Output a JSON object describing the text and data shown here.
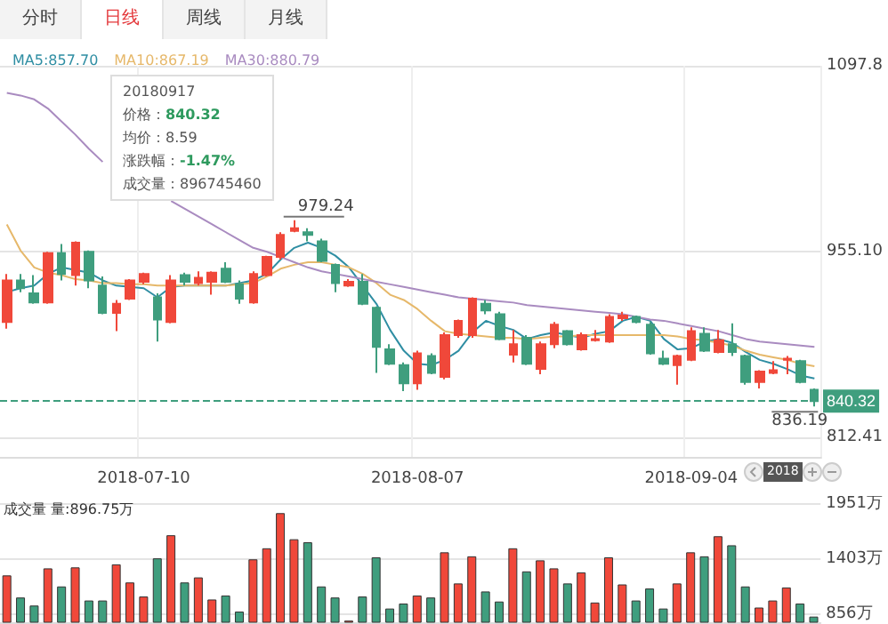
{
  "chart_data": [
    {
      "type": "other",
      "annotations": [
        "分时",
        "日线",
        "周线",
        "月线"
      ]
    },
    {
      "type": "candlestick",
      "categories": [
        null,
        null,
        null,
        null,
        null,
        null,
        null,
        null,
        null,
        null,
        "2018-07-10",
        null,
        null,
        null,
        null,
        null,
        null,
        null,
        null,
        null,
        null,
        null,
        null,
        null,
        null,
        null,
        null,
        null,
        null,
        null,
        "2018-08-07",
        null,
        null,
        null,
        null,
        null,
        null,
        null,
        null,
        null,
        null,
        null,
        null,
        null,
        null,
        null,
        null,
        null,
        null,
        null,
        "2018-09-04",
        null,
        null,
        null,
        null,
        null,
        null,
        null,
        null,
        null
      ],
      "ohlc": [
        [
          901,
          938,
          896,
          933
        ],
        [
          933,
          938,
          924,
          927
        ],
        [
          923,
          937,
          915,
          916
        ],
        [
          916,
          955,
          915,
          954
        ],
        [
          954,
          961,
          933,
          938
        ],
        [
          937,
          963,
          929,
          962
        ],
        [
          955,
          956,
          927,
          933
        ],
        [
          929,
          936,
          907,
          908
        ],
        [
          908,
          918,
          894,
          915
        ],
        [
          919,
          934,
          918,
          933
        ],
        [
          932,
          939,
          930,
          938
        ],
        [
          920,
          923,
          886,
          903
        ],
        [
          901,
          937,
          900,
          933
        ],
        [
          937,
          939,
          929,
          932
        ],
        [
          931,
          940,
          929,
          935
        ],
        [
          932,
          940,
          922,
          939
        ],
        [
          942,
          947,
          931,
          932
        ],
        [
          930,
          933,
          915,
          919
        ],
        [
          916,
          940,
          915,
          938
        ],
        [
          937,
          952,
          936,
          951
        ],
        [
          951,
          970,
          949,
          968
        ],
        [
          971,
          979.24,
          970,
          973
        ],
        [
          970,
          973,
          963,
          968
        ],
        [
          963,
          965,
          947,
          948
        ],
        [
          945,
          946,
          924,
          931
        ],
        [
          929,
          934,
          928,
          932
        ],
        [
          932,
          938,
          914,
          915
        ],
        [
          912,
          913,
          862,
          882
        ],
        [
          880,
          884,
          868,
          869
        ],
        [
          868,
          870,
          848,
          854
        ],
        [
          854,
          879,
          849,
          877
        ],
        [
          875,
          877,
          861,
          862
        ],
        [
          859,
          893,
          857,
          891
        ],
        [
          891,
          903,
          889,
          902
        ],
        [
          891,
          920,
          889,
          919
        ],
        [
          915,
          918,
          907,
          910
        ],
        [
          907,
          909,
          887,
          888
        ],
        [
          876,
          895,
          870,
          884
        ],
        [
          889,
          891,
          868,
          869
        ],
        [
          865,
          886,
          861,
          884
        ],
        [
          884,
          901,
          881,
          899
        ],
        [
          894,
          895,
          883,
          884
        ],
        [
          880,
          893,
          879,
          891
        ],
        [
          887,
          895,
          886,
          888
        ],
        [
          886,
          907,
          885,
          905
        ],
        [
          904,
          909,
          902,
          906
        ],
        [
          905,
          906,
          900,
          901
        ],
        [
          899,
          901,
          876,
          877
        ],
        [
          873,
          879,
          868,
          869
        ],
        [
          868,
          876,
          853,
          875
        ],
        [
          872,
          897,
          871,
          894
        ],
        [
          892,
          897,
          878,
          879
        ],
        [
          878,
          895,
          877,
          887
        ],
        [
          884,
          900,
          875,
          878
        ],
        [
          875,
          876,
          853,
          855
        ],
        [
          855,
          864,
          850,
          863
        ],
        [
          862,
          871,
          861,
          864
        ],
        [
          872,
          875,
          861,
          873
        ],
        [
          871,
          872,
          854,
          855
        ],
        [
          849,
          850,
          836.19,
          840.32
        ]
      ],
      "colors": [
        "#f0483a",
        "#3f9e7e",
        "#3f9e7e",
        "#f0483a",
        "#3f9e7e",
        "#f0483a",
        "#3f9e7e",
        "#3f9e7e",
        "#f0483a",
        "#f0483a",
        "#f0483a",
        "#3f9e7e",
        "#f0483a",
        "#3f9e7e",
        "#f0483a",
        "#f0483a",
        "#3f9e7e",
        "#3f9e7e",
        "#f0483a",
        "#f0483a",
        "#f0483a",
        "#f0483a",
        "#3f9e7e",
        "#3f9e7e",
        "#3f9e7e",
        "#f0483a",
        "#3f9e7e",
        "#3f9e7e",
        "#3f9e7e",
        "#3f9e7e",
        "#f0483a",
        "#3f9e7e",
        "#f0483a",
        "#f0483a",
        "#f0483a",
        "#3f9e7e",
        "#3f9e7e",
        "#f0483a",
        "#3f9e7e",
        "#f0483a",
        "#f0483a",
        "#3f9e7e",
        "#f0483a",
        "#f0483a",
        "#f0483a",
        "#f0483a",
        "#3f9e7e",
        "#3f9e7e",
        "#3f9e7e",
        "#f0483a",
        "#f0483a",
        "#3f9e7e",
        "#f0483a",
        "#3f9e7e",
        "#3f9e7e",
        "#f0483a",
        "#f0483a",
        "#f0483a",
        "#3f9e7e",
        "#3f9e7e"
      ],
      "series": [
        {
          "name": "MA5:857.70",
          "type": "line",
          "color": "#2f8ea3",
          "values": [
            924,
            927,
            929,
            938,
            943,
            941,
            939,
            933,
            929,
            928,
            927,
            920,
            928,
            929,
            929,
            929,
            929,
            931,
            933,
            938,
            949,
            958,
            962,
            958,
            952,
            943,
            929,
            915,
            895,
            879,
            869,
            868,
            872,
            879,
            893,
            902,
            898,
            895,
            888,
            891,
            893,
            891,
            889,
            892,
            894,
            902,
            905,
            902,
            888,
            880,
            881,
            886,
            888,
            885,
            878,
            872,
            869,
            865,
            860,
            857.7
          ]
        },
        {
          "name": "MA10:867.19",
          "type": "line",
          "color": "#e6b86a",
          "values": [
            976,
            956,
            943,
            939,
            937,
            934,
            933,
            931,
            931,
            930,
            930,
            929,
            929,
            929,
            929,
            929,
            929,
            930,
            931,
            936,
            942,
            945,
            947,
            947,
            945,
            943,
            938,
            931,
            922,
            918,
            911,
            902,
            894,
            892,
            891,
            890,
            889,
            889,
            888,
            889,
            890,
            890,
            891,
            891,
            891,
            891,
            891,
            891,
            891,
            890,
            888,
            887,
            885,
            883,
            879,
            876,
            874,
            872,
            869,
            867.19
          ]
        },
        {
          "name": "MA30:880.79",
          "type": "line",
          "color": "#a98bc0",
          "values": [
            1077,
            1075,
            1072,
            1065,
            1055,
            1045,
            1034,
            1024,
            null,
            null,
            null,
            null,
            994,
            988,
            982,
            976,
            970,
            964,
            958,
            955,
            951,
            947,
            943,
            940,
            938,
            936,
            934,
            932,
            930,
            928,
            926,
            924,
            922,
            920,
            919,
            918,
            917,
            916,
            914,
            913,
            912,
            911,
            910,
            909,
            908,
            907,
            905,
            903,
            902,
            900,
            898,
            896,
            894,
            891,
            888,
            886,
            885,
            884,
            883,
            882
          ]
        }
      ],
      "ylim": [
        797.5,
        1097.8
      ],
      "yticks": [
        812.41,
        {
          "value": 955.1,
          "label": "955.10"
        },
        1097.8
      ],
      "grid": true,
      "legend": "top left",
      "marker": "none",
      "line_style": "solid",
      "ref_lines": [
        {
          "axis": "y",
          "value": 840.32,
          "label": "840.32",
          "color": "#3f9e7e",
          "line_style": "dashed"
        }
      ],
      "annotations": [
        "20180917",
        "价格：840.32",
        "均价：8.59",
        "涨跌幅：-1.47%",
        "成交量：896745460",
        "2018",
        "979.24",
        "836.19"
      ]
    },
    {
      "type": "bar",
      "categories": [
        null,
        null,
        null,
        null,
        null,
        null,
        null,
        null,
        null,
        null,
        "2018-07-10",
        null,
        null,
        null,
        null,
        null,
        null,
        null,
        null,
        null,
        null,
        null,
        null,
        null,
        null,
        null,
        null,
        null,
        null,
        null,
        "2018-08-07",
        null,
        null,
        null,
        null,
        null,
        null,
        null,
        null,
        null,
        null,
        null,
        null,
        null,
        null,
        null,
        null,
        null,
        null,
        null,
        "2018-09-04",
        null,
        null,
        null,
        null,
        null,
        null,
        null,
        null,
        null
      ],
      "values": [
        1240,
        1020,
        940,
        1310,
        1130,
        1320,
        990,
        990,
        1350,
        1170,
        1030,
        1410,
        1640,
        1170,
        1220,
        1000,
        1040,
        880,
        1400,
        1510,
        1860,
        1600,
        1570,
        1130,
        1020,
        790,
        1030,
        1420,
        910,
        960,
        1040,
        1020,
        1470,
        1160,
        1430,
        1080,
        980,
        1510,
        1280,
        1390,
        1310,
        1160,
        1270,
        970,
        1420,
        1150,
        990,
        1110,
        910,
        1160,
        1470,
        1430,
        1630,
        1540,
        1130,
        920,
        990,
        1120,
        960,
        830
      ],
      "colors": [
        "#f0483a",
        "#3f9e7e",
        "#3f9e7e",
        "#f0483a",
        "#3f9e7e",
        "#f0483a",
        "#3f9e7e",
        "#3f9e7e",
        "#f0483a",
        "#f0483a",
        "#f0483a",
        "#3f9e7e",
        "#f0483a",
        "#3f9e7e",
        "#f0483a",
        "#f0483a",
        "#3f9e7e",
        "#3f9e7e",
        "#f0483a",
        "#f0483a",
        "#f0483a",
        "#f0483a",
        "#3f9e7e",
        "#3f9e7e",
        "#3f9e7e",
        "#f0483a",
        "#3f9e7e",
        "#3f9e7e",
        "#3f9e7e",
        "#3f9e7e",
        "#f0483a",
        "#3f9e7e",
        "#f0483a",
        "#f0483a",
        "#f0483a",
        "#3f9e7e",
        "#3f9e7e",
        "#f0483a",
        "#3f9e7e",
        "#f0483a",
        "#f0483a",
        "#3f9e7e",
        "#f0483a",
        "#f0483a",
        "#f0483a",
        "#f0483a",
        "#3f9e7e",
        "#3f9e7e",
        "#3f9e7e",
        "#f0483a",
        "#f0483a",
        "#3f9e7e",
        "#f0483a",
        "#3f9e7e",
        "#3f9e7e",
        "#f0483a",
        "#f0483a",
        "#f0483a",
        "#3f9e7e",
        "#3f9e7e"
      ],
      "ylim": [
        774,
        1951
      ],
      "yticks": [
        {
          "value": 856,
          "label": "856万"
        },
        {
          "value": 1403,
          "label": "1403万"
        },
        {
          "value": 1951,
          "label": "1951万"
        }
      ],
      "tick_labels": "y",
      "grid": "y",
      "annotations": [
        "成交量 量:896.75万"
      ]
    }
  ]
}
